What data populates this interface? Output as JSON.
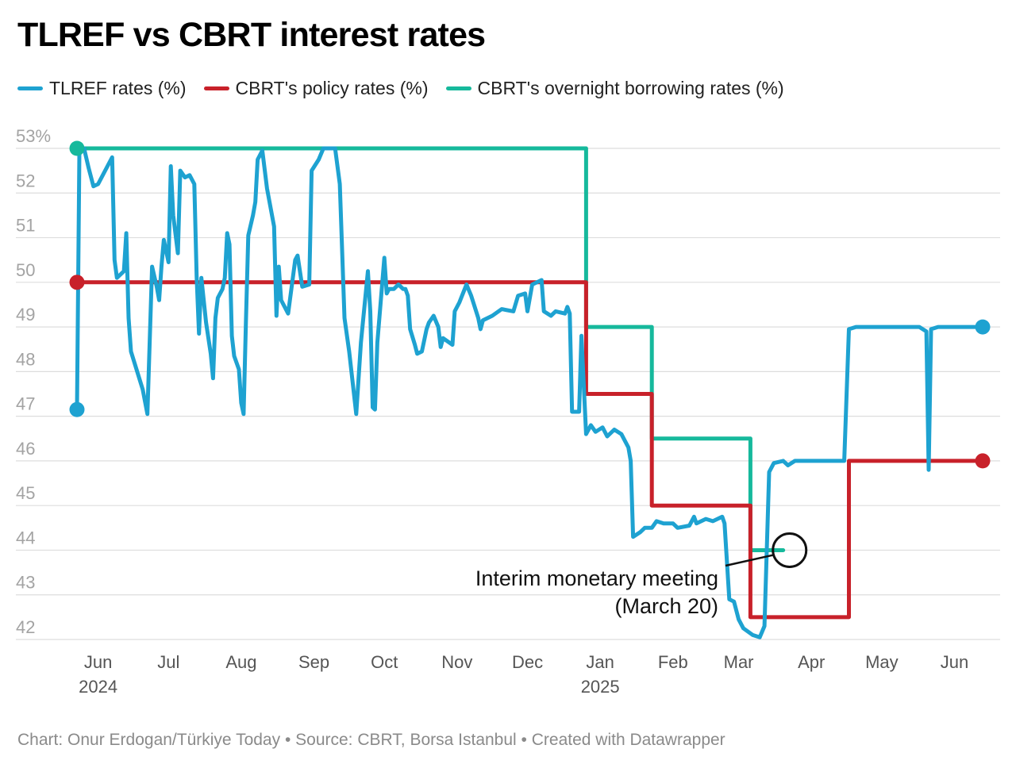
{
  "title": "TLREF vs CBRT interest rates",
  "footer": "Chart: Onur Erdogan/Türkiye Today • Source: CBRT, Borsa Istanbul • Created with Datawrapper",
  "colors": {
    "tlref": "#1ea2d1",
    "policy": "#c8212a",
    "overnight": "#16b99c",
    "grid": "#dddddd"
  },
  "chart_data": {
    "type": "line",
    "title": "TLREF vs CBRT interest rates",
    "xlabel": "",
    "ylabel": "",
    "ylim": [
      42,
      53
    ],
    "y_ticks": [
      {
        "value": 53,
        "label": "53%"
      },
      {
        "value": 52,
        "label": "52"
      },
      {
        "value": 51,
        "label": "51"
      },
      {
        "value": 50,
        "label": "50"
      },
      {
        "value": 49,
        "label": "49"
      },
      {
        "value": 48,
        "label": "48"
      },
      {
        "value": 47,
        "label": "47"
      },
      {
        "value": 46,
        "label": "46"
      },
      {
        "value": 45,
        "label": "45"
      },
      {
        "value": 44,
        "label": "44"
      },
      {
        "value": 43,
        "label": "43"
      },
      {
        "value": 42,
        "label": "42"
      }
    ],
    "x_range": [
      "2024-05-23",
      "2025-06-13"
    ],
    "x_ticks": [
      {
        "date": "2024-06-01",
        "label": "Jun",
        "sublabel": "2024"
      },
      {
        "date": "2024-07-01",
        "label": "Jul"
      },
      {
        "date": "2024-08-01",
        "label": "Aug"
      },
      {
        "date": "2024-09-01",
        "label": "Sep"
      },
      {
        "date": "2024-10-01",
        "label": "Oct"
      },
      {
        "date": "2024-11-01",
        "label": "Nov"
      },
      {
        "date": "2024-12-01",
        "label": "Dec"
      },
      {
        "date": "2025-01-01",
        "label": "Jan",
        "sublabel": "2025"
      },
      {
        "date": "2025-02-01",
        "label": "Feb"
      },
      {
        "date": "2025-03-01",
        "label": "Mar"
      },
      {
        "date": "2025-04-01",
        "label": "Apr"
      },
      {
        "date": "2025-05-01",
        "label": "May"
      },
      {
        "date": "2025-06-01",
        "label": "Jun"
      }
    ],
    "series": [
      {
        "name": "TLREF rates (%)",
        "key": "tlref",
        "step": false,
        "points": [
          [
            "2024-05-23",
            47.15
          ],
          [
            "2024-05-24",
            52.9
          ],
          [
            "2024-05-26",
            53
          ],
          [
            "2024-05-28",
            52.55
          ],
          [
            "2024-05-30",
            52.15
          ],
          [
            "2024-06-01",
            52.2
          ],
          [
            "2024-06-05",
            52.6
          ],
          [
            "2024-06-07",
            52.8
          ],
          [
            "2024-06-08",
            50.5
          ],
          [
            "2024-06-09",
            50.1
          ],
          [
            "2024-06-12",
            50.25
          ],
          [
            "2024-06-13",
            51.1
          ],
          [
            "2024-06-14",
            49.2
          ],
          [
            "2024-06-15",
            48.45
          ],
          [
            "2024-06-20",
            47.6
          ],
          [
            "2024-06-22",
            47.05
          ],
          [
            "2024-06-24",
            50.35
          ],
          [
            "2024-06-26",
            49.9
          ],
          [
            "2024-06-27",
            49.6
          ],
          [
            "2024-06-28",
            50.35
          ],
          [
            "2024-06-29",
            50.95
          ],
          [
            "2024-07-01",
            50.45
          ],
          [
            "2024-07-02",
            52.6
          ],
          [
            "2024-07-03",
            51.5
          ],
          [
            "2024-07-05",
            50.65
          ],
          [
            "2024-07-06",
            52.5
          ],
          [
            "2024-07-08",
            52.35
          ],
          [
            "2024-07-10",
            52.4
          ],
          [
            "2024-07-12",
            52.2
          ],
          [
            "2024-07-13",
            50.1
          ],
          [
            "2024-07-14",
            48.85
          ],
          [
            "2024-07-15",
            50.1
          ],
          [
            "2024-07-17",
            49.1
          ],
          [
            "2024-07-19",
            48.4
          ],
          [
            "2024-07-20",
            47.85
          ],
          [
            "2024-07-21",
            49.2
          ],
          [
            "2024-07-22",
            49.65
          ],
          [
            "2024-07-24",
            49.85
          ],
          [
            "2024-07-25",
            50.1
          ],
          [
            "2024-07-26",
            51.1
          ],
          [
            "2024-07-27",
            50.85
          ],
          [
            "2024-07-28",
            48.8
          ],
          [
            "2024-07-29",
            48.35
          ],
          [
            "2024-07-31",
            48.05
          ],
          [
            "2024-08-01",
            47.3
          ],
          [
            "2024-08-02",
            47.05
          ],
          [
            "2024-08-03",
            49.1
          ],
          [
            "2024-08-04",
            51.05
          ],
          [
            "2024-08-06",
            51.5
          ],
          [
            "2024-08-07",
            51.8
          ],
          [
            "2024-08-08",
            52.75
          ],
          [
            "2024-08-10",
            52.95
          ],
          [
            "2024-08-12",
            52.1
          ],
          [
            "2024-08-15",
            51.25
          ],
          [
            "2024-08-16",
            49.25
          ],
          [
            "2024-08-17",
            50.35
          ],
          [
            "2024-08-18",
            49.6
          ],
          [
            "2024-08-21",
            49.3
          ],
          [
            "2024-08-24",
            50.5
          ],
          [
            "2024-08-25",
            50.6
          ],
          [
            "2024-08-27",
            49.9
          ],
          [
            "2024-08-30",
            49.95
          ],
          [
            "2024-08-31",
            52.5
          ],
          [
            "2024-09-03",
            52.75
          ],
          [
            "2024-09-05",
            53
          ],
          [
            "2024-09-10",
            53
          ],
          [
            "2024-09-12",
            52.2
          ],
          [
            "2024-09-14",
            49.2
          ],
          [
            "2024-09-16",
            48.45
          ],
          [
            "2024-09-19",
            47.05
          ],
          [
            "2024-09-21",
            48.65
          ],
          [
            "2024-09-24",
            50.25
          ],
          [
            "2024-09-25",
            49.35
          ],
          [
            "2024-09-26",
            47.2
          ],
          [
            "2024-09-27",
            47.15
          ],
          [
            "2024-09-28",
            48.65
          ],
          [
            "2024-10-01",
            50.55
          ],
          [
            "2024-10-02",
            49.75
          ],
          [
            "2024-10-03",
            49.85
          ],
          [
            "2024-10-05",
            49.85
          ],
          [
            "2024-10-07",
            49.95
          ],
          [
            "2024-10-09",
            49.85
          ],
          [
            "2024-10-10",
            49.85
          ],
          [
            "2024-10-11",
            49.7
          ],
          [
            "2024-10-12",
            48.95
          ],
          [
            "2024-10-14",
            48.6
          ],
          [
            "2024-10-15",
            48.4
          ],
          [
            "2024-10-17",
            48.45
          ],
          [
            "2024-10-19",
            48.95
          ],
          [
            "2024-10-20",
            49.1
          ],
          [
            "2024-10-22",
            49.25
          ],
          [
            "2024-10-24",
            49.0
          ],
          [
            "2024-10-25",
            48.55
          ],
          [
            "2024-10-26",
            48.75
          ],
          [
            "2024-10-30",
            48.6
          ],
          [
            "2024-10-31",
            49.35
          ],
          [
            "2024-11-02",
            49.55
          ],
          [
            "2024-11-05",
            49.95
          ],
          [
            "2024-11-07",
            49.7
          ],
          [
            "2024-11-10",
            49.2
          ],
          [
            "2024-11-11",
            48.95
          ],
          [
            "2024-11-12",
            49.15
          ],
          [
            "2024-11-16",
            49.25
          ],
          [
            "2024-11-20",
            49.4
          ],
          [
            "2024-11-25",
            49.35
          ],
          [
            "2024-11-27",
            49.7
          ],
          [
            "2024-11-30",
            49.75
          ],
          [
            "2024-12-01",
            49.35
          ],
          [
            "2024-12-03",
            49.95
          ],
          [
            "2024-12-07",
            50.05
          ],
          [
            "2024-12-08",
            49.35
          ],
          [
            "2024-12-11",
            49.25
          ],
          [
            "2024-12-13",
            49.35
          ],
          [
            "2024-12-17",
            49.3
          ],
          [
            "2024-12-18",
            49.45
          ],
          [
            "2024-12-19",
            49.3
          ],
          [
            "2024-12-20",
            47.1
          ],
          [
            "2024-12-23",
            47.1
          ],
          [
            "2024-12-24",
            48.8
          ],
          [
            "2024-12-26",
            46.6
          ],
          [
            "2024-12-28",
            46.8
          ],
          [
            "2024-12-30",
            46.65
          ],
          [
            "2025-01-02",
            46.75
          ],
          [
            "2025-01-04",
            46.55
          ],
          [
            "2025-01-07",
            46.7
          ],
          [
            "2025-01-10",
            46.6
          ],
          [
            "2025-01-13",
            46.3
          ],
          [
            "2025-01-14",
            46.0
          ],
          [
            "2025-01-15",
            44.3
          ],
          [
            "2025-01-18",
            44.4
          ],
          [
            "2025-01-20",
            44.5
          ],
          [
            "2025-01-23",
            44.5
          ],
          [
            "2025-01-25",
            44.65
          ],
          [
            "2025-01-28",
            44.6
          ],
          [
            "2025-02-01",
            44.6
          ],
          [
            "2025-02-03",
            44.5
          ],
          [
            "2025-02-08",
            44.55
          ],
          [
            "2025-02-10",
            44.75
          ],
          [
            "2025-02-11",
            44.6
          ],
          [
            "2025-02-15",
            44.7
          ],
          [
            "2025-02-18",
            44.65
          ],
          [
            "2025-02-22",
            44.75
          ],
          [
            "2025-02-23",
            44.6
          ],
          [
            "2025-02-25",
            42.9
          ],
          [
            "2025-02-27",
            42.85
          ],
          [
            "2025-03-01",
            42.45
          ],
          [
            "2025-03-03",
            42.25
          ],
          [
            "2025-03-07",
            42.1
          ],
          [
            "2025-03-10",
            42.05
          ],
          [
            "2025-03-12",
            42.3
          ],
          [
            "2025-03-14",
            45.75
          ],
          [
            "2025-03-16",
            45.95
          ],
          [
            "2025-03-20",
            46.0
          ],
          [
            "2025-03-22",
            45.9
          ],
          [
            "2025-03-25",
            46.0
          ],
          [
            "2025-04-15",
            46.0
          ],
          [
            "2025-04-17",
            48.95
          ],
          [
            "2025-04-20",
            49.0
          ],
          [
            "2025-05-17",
            49.0
          ],
          [
            "2025-05-20",
            48.9
          ],
          [
            "2025-05-21",
            45.8
          ],
          [
            "2025-05-22",
            48.95
          ],
          [
            "2025-05-25",
            49.0
          ],
          [
            "2025-06-13",
            49.0
          ]
        ]
      },
      {
        "name": "CBRT's policy rates (%)",
        "key": "policy",
        "step": true,
        "points": [
          [
            "2024-05-23",
            50
          ],
          [
            "2024-12-26",
            47.5
          ],
          [
            "2025-01-23",
            45
          ],
          [
            "2025-03-06",
            42.5
          ],
          [
            "2025-04-17",
            46
          ],
          [
            "2025-06-13",
            46
          ]
        ]
      },
      {
        "name": "CBRT's overnight borrowing rates (%)",
        "key": "overnight",
        "step": true,
        "points": [
          [
            "2024-05-23",
            53
          ],
          [
            "2024-12-26",
            49
          ],
          [
            "2025-01-23",
            46.5
          ],
          [
            "2025-03-06",
            44
          ],
          [
            "2025-03-20",
            44
          ]
        ]
      }
    ],
    "annotation": {
      "text_line1": "Interim monetary meeting",
      "text_line2": "(March 20)",
      "date": "2025-03-20",
      "value": 44
    }
  }
}
